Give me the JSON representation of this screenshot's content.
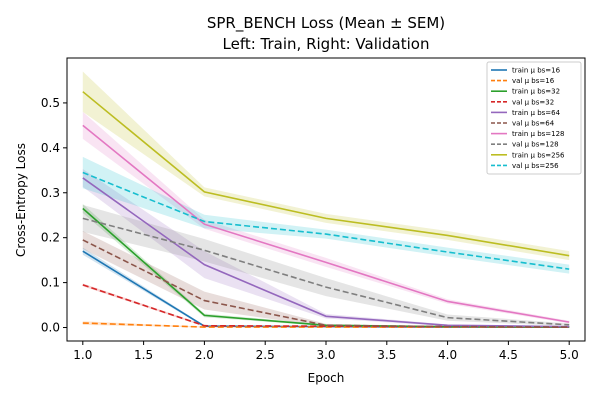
{
  "chart_data": {
    "type": "line",
    "title_lines": [
      "SPR_BENCH Loss (Mean ± SEM)",
      "Left: Train, Right: Validation"
    ],
    "xlabel": "Epoch",
    "ylabel": "Cross-Entropy Loss",
    "xlim": [
      0.87,
      5.13
    ],
    "ylim": [
      -0.03,
      0.6
    ],
    "xticks": [
      "1.0",
      "1.5",
      "2.0",
      "2.5",
      "3.0",
      "3.5",
      "4.0",
      "4.5",
      "5.0"
    ],
    "yticks": [
      "0.0",
      "0.1",
      "0.2",
      "0.3",
      "0.4",
      "0.5"
    ],
    "grid": false,
    "legend_position": "top-right",
    "x": [
      1,
      2,
      3,
      4,
      5
    ],
    "series": [
      {
        "name": "train μ bs=16",
        "split": "train",
        "color": "#1f77b4",
        "values": [
          0.17,
          0.003,
          0.002,
          0.001,
          0.001
        ],
        "sem": [
          0.008,
          0.002,
          0.001,
          0.001,
          0.001
        ]
      },
      {
        "name": "val μ bs=16",
        "split": "val",
        "color": "#ff7f0e",
        "values": [
          0.01,
          0.001,
          0.001,
          0.001,
          0.001
        ],
        "sem": [
          0.004,
          0.001,
          0.001,
          0.001,
          0.001
        ]
      },
      {
        "name": "train μ bs=32",
        "split": "train",
        "color": "#2ca02c",
        "values": [
          0.265,
          0.027,
          0.005,
          0.002,
          0.001
        ],
        "sem": [
          0.01,
          0.004,
          0.002,
          0.001,
          0.001
        ]
      },
      {
        "name": "val μ bs=32",
        "split": "val",
        "color": "#d62728",
        "values": [
          0.095,
          0.004,
          0.003,
          0.002,
          0.001
        ],
        "sem": [
          0.003,
          0.002,
          0.001,
          0.001,
          0.001
        ]
      },
      {
        "name": "train μ bs=64",
        "split": "train",
        "color": "#9467bd",
        "values": [
          0.333,
          0.14,
          0.025,
          0.005,
          0.002
        ],
        "sem": [
          0.02,
          0.03,
          0.005,
          0.002,
          0.001
        ]
      },
      {
        "name": "val μ bs=64",
        "split": "val",
        "color": "#8c564b",
        "values": [
          0.195,
          0.06,
          0.005,
          0.002,
          0.001
        ],
        "sem": [
          0.02,
          0.02,
          0.003,
          0.001,
          0.001
        ]
      },
      {
        "name": "train μ bs=128",
        "split": "train",
        "color": "#e377c2",
        "values": [
          0.45,
          0.23,
          0.145,
          0.058,
          0.012
        ],
        "sem": [
          0.03,
          0.01,
          0.01,
          0.005,
          0.003
        ]
      },
      {
        "name": "val μ bs=128",
        "split": "val",
        "color": "#7f7f7f",
        "values": [
          0.243,
          0.172,
          0.09,
          0.022,
          0.006
        ],
        "sem": [
          0.03,
          0.025,
          0.02,
          0.007,
          0.003
        ]
      },
      {
        "name": "train μ bs=256",
        "split": "train",
        "color": "#bcbd22",
        "values": [
          0.525,
          0.302,
          0.243,
          0.205,
          0.16
        ],
        "sem": [
          0.045,
          0.01,
          0.01,
          0.01,
          0.01
        ]
      },
      {
        "name": "val μ bs=256",
        "split": "val",
        "color": "#17becf",
        "values": [
          0.345,
          0.236,
          0.208,
          0.168,
          0.13
        ],
        "sem": [
          0.035,
          0.015,
          0.01,
          0.01,
          0.01
        ]
      }
    ]
  }
}
